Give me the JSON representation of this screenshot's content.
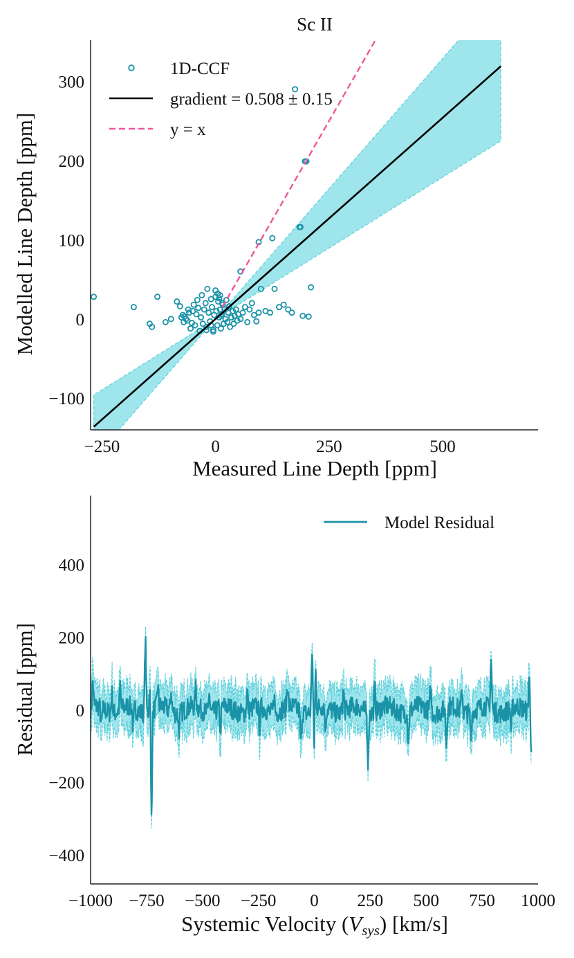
{
  "chart_data": [
    {
      "type": "scatter",
      "title": "Sc II",
      "xlabel": "Measured Line Depth [ppm]",
      "ylabel": "Modelled Line Depth [ppm]",
      "xlim": [
        -275,
        710
      ],
      "ylim": [
        -140,
        352
      ],
      "xticks": [
        -250,
        0,
        250,
        500
      ],
      "yticks": [
        -100,
        0,
        100,
        200,
        300
      ],
      "xtick_labels": [
        "−250",
        "0",
        "250",
        "500"
      ],
      "ytick_labels": [
        "−100",
        "0",
        "100",
        "200",
        "300"
      ],
      "grid": false,
      "legend_position": "top-left",
      "legend": [
        "1D-CCF",
        "gradient = 0.508 ± 0.15",
        "y = x"
      ],
      "colors": {
        "points": "#1a93a8",
        "fit": "#000000",
        "identity": "#ef559d",
        "band": "#9ee5ec",
        "band_edge": "#5fd0dc"
      },
      "fit": {
        "gradient": 0.508,
        "intercept": 0,
        "x_range": [
          -268,
          628
        ],
        "band_upper_slope": 0.658,
        "band_lower_slope": 0.358
      },
      "identity_line": {
        "x_range": [
          15,
          360
        ]
      },
      "points": {
        "x": [
          -268,
          -180,
          -145,
          -140,
          -128,
          -110,
          -98,
          -85,
          -78,
          -75,
          -72,
          -70,
          -68,
          -65,
          -62,
          -60,
          -58,
          -55,
          -52,
          -50,
          -48,
          -45,
          -42,
          -40,
          -38,
          -35,
          -32,
          -30,
          -28,
          -25,
          -22,
          -20,
          -18,
          -15,
          -12,
          -10,
          -8,
          -5,
          -3,
          0,
          2,
          4,
          6,
          8,
          10,
          12,
          14,
          16,
          18,
          20,
          22,
          24,
          26,
          28,
          30,
          32,
          35,
          38,
          40,
          42,
          45,
          48,
          50,
          55,
          60,
          65,
          70,
          75,
          80,
          85,
          90,
          95,
          100,
          110,
          120,
          130,
          140,
          150,
          160,
          168,
          175,
          185,
          192,
          200,
          205,
          210,
          55,
          95,
          125,
          187,
          197,
          -20,
          -10,
          0,
          5,
          10,
          15,
          -5,
          8,
          12
        ],
        "y": [
          28,
          15,
          -6,
          -10,
          28,
          -4,
          0,
          22,
          16,
          2,
          5,
          -4,
          3,
          0,
          -2,
          12,
          8,
          -12,
          -5,
          10,
          18,
          -8,
          6,
          24,
          14,
          -15,
          2,
          30,
          -6,
          12,
          20,
          -10,
          38,
          8,
          -3,
          25,
          15,
          -14,
          5,
          36,
          10,
          -8,
          22,
          2,
          30,
          -12,
          6,
          18,
          -6,
          12,
          0,
          24,
          -4,
          8,
          16,
          -10,
          2,
          10,
          -6,
          4,
          12,
          -2,
          6,
          0,
          8,
          15,
          -4,
          12,
          20,
          5,
          -3,
          8,
          38,
          10,
          8,
          38,
          15,
          18,
          12,
          8,
          290,
          116,
          4,
          199,
          3,
          40,
          60,
          97,
          102,
          116,
          199,
          -14,
          -8,
          28,
          32,
          12,
          20,
          -16,
          26,
          4
        ]
      }
    },
    {
      "type": "line",
      "title": "",
      "xlabel": "Systemic Velocity ($V_{sys}$) [km/s]",
      "xlabel_main": "Systemic Velocity (",
      "xlabel_var": "V",
      "xlabel_sub": "sys",
      "xlabel_tail": ") [km/s]",
      "ylabel": "Residual [ppm]",
      "xlim": [
        -1000,
        1000
      ],
      "ylim": [
        -480,
        590
      ],
      "xticks": [
        -1000,
        -750,
        -500,
        -250,
        0,
        250,
        500,
        750,
        1000
      ],
      "yticks": [
        -400,
        -200,
        0,
        200,
        400
      ],
      "xtick_labels": [
        "−1000",
        "−750",
        "−500",
        "−250",
        "0",
        "250",
        "500",
        "750",
        "1000"
      ],
      "ytick_labels": [
        "−400",
        "−200",
        "0",
        "200",
        "400"
      ],
      "grid": false,
      "legend_position": "top-right",
      "legend": [
        "Model Residual"
      ],
      "colors": {
        "line": "#1a93a8",
        "band": "#9ee5ec",
        "band_edge": "#5fd0dc"
      },
      "series": [
        {
          "name": "Model Residual",
          "x_range": [
            -1000,
            970
          ],
          "noise_amplitude": 28,
          "band_halfwidth": 55,
          "spikes": [
            [
              -990,
              70
            ],
            [
              -952,
              -50
            ],
            [
              -905,
              55
            ],
            [
              -868,
              60
            ],
            [
              -810,
              -60
            ],
            [
              -755,
              200
            ],
            [
              -735,
              80
            ],
            [
              -728,
              -290
            ],
            [
              -700,
              60
            ],
            [
              -640,
              55
            ],
            [
              -605,
              -50
            ],
            [
              -530,
              50
            ],
            [
              -470,
              60
            ],
            [
              -420,
              -65
            ],
            [
              -300,
              55
            ],
            [
              -245,
              -60
            ],
            [
              -180,
              50
            ],
            [
              -120,
              65
            ],
            [
              -60,
              -90
            ],
            [
              -10,
              170
            ],
            [
              0,
              -120
            ],
            [
              5,
              120
            ],
            [
              50,
              -60
            ],
            [
              130,
              60
            ],
            [
              240,
              -130
            ],
            [
              270,
              70
            ],
            [
              420,
              -80
            ],
            [
              520,
              60
            ],
            [
              590,
              -100
            ],
            [
              660,
              60
            ],
            [
              700,
              -70
            ],
            [
              790,
              135
            ],
            [
              880,
              -60
            ],
            [
              960,
              100
            ],
            [
              970,
              -85
            ]
          ]
        }
      ]
    }
  ]
}
